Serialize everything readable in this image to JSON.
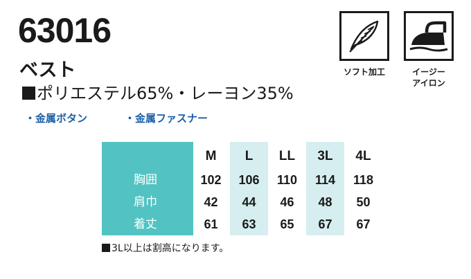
{
  "product": {
    "code": "63016",
    "name": "ベスト",
    "material": "ポリエステル65%・レーヨン35%"
  },
  "features": [
    "・金属ボタン",
    "・金属ファスナー"
  ],
  "icons": [
    {
      "name": "feather-icon",
      "label": "ソフト加工"
    },
    {
      "name": "iron-icon",
      "label_lines": [
        "イージー",
        "アイロン"
      ]
    }
  ],
  "size_table": {
    "columns": [
      "M",
      "L",
      "LL",
      "3L",
      "4L"
    ],
    "rows": [
      {
        "label": "胸囲",
        "values": [
          "102",
          "106",
          "110",
          "114",
          "118"
        ]
      },
      {
        "label": "肩巾",
        "values": [
          "42",
          "44",
          "46",
          "48",
          "50"
        ]
      },
      {
        "label": "着丈",
        "values": [
          "61",
          "63",
          "65",
          "67",
          "67"
        ]
      }
    ],
    "highlight_columns": [
      "L",
      "3L"
    ]
  },
  "note": "3L以上は割高になります。",
  "colors": {
    "accent_teal": "#52c3c2",
    "highlight_column": "#d6eeef",
    "feature_blue": "#1b5fa8",
    "text": "#1a1a1a"
  }
}
